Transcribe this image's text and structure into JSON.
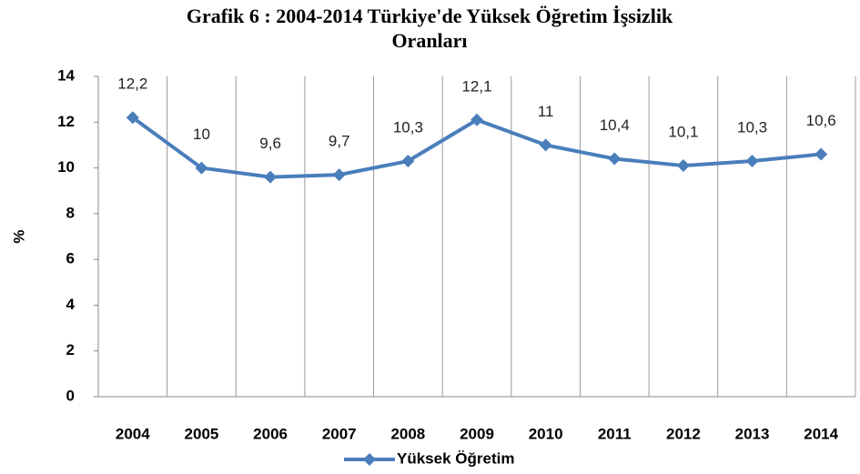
{
  "chart_data": {
    "type": "line",
    "title": "Grafik  6 : 2004-2014 Türkiye'de Yüksek Öğretim İşsizlik Oranları",
    "y_label": "%",
    "categories": [
      "2004",
      "2005",
      "2006",
      "2007",
      "2008",
      "2009",
      "2010",
      "2011",
      "2012",
      "2013",
      "2014"
    ],
    "series": [
      {
        "name": "Yüksek Öğretim",
        "color": "#4a7ebb",
        "values": [
          12.2,
          10,
          9.6,
          9.7,
          10.3,
          12.1,
          11,
          10.4,
          10.1,
          10.3,
          10.6
        ],
        "value_labels": [
          "12,2",
          "10",
          "9,6",
          "9,7",
          "10,3",
          "12,1",
          "11",
          "10,4",
          "10,1",
          "10,3",
          "10,6"
        ]
      }
    ],
    "ylim": [
      0,
      14
    ],
    "yticks": [
      0,
      2,
      4,
      6,
      8,
      10,
      12,
      14
    ],
    "grid": true,
    "legend": "bottom"
  }
}
